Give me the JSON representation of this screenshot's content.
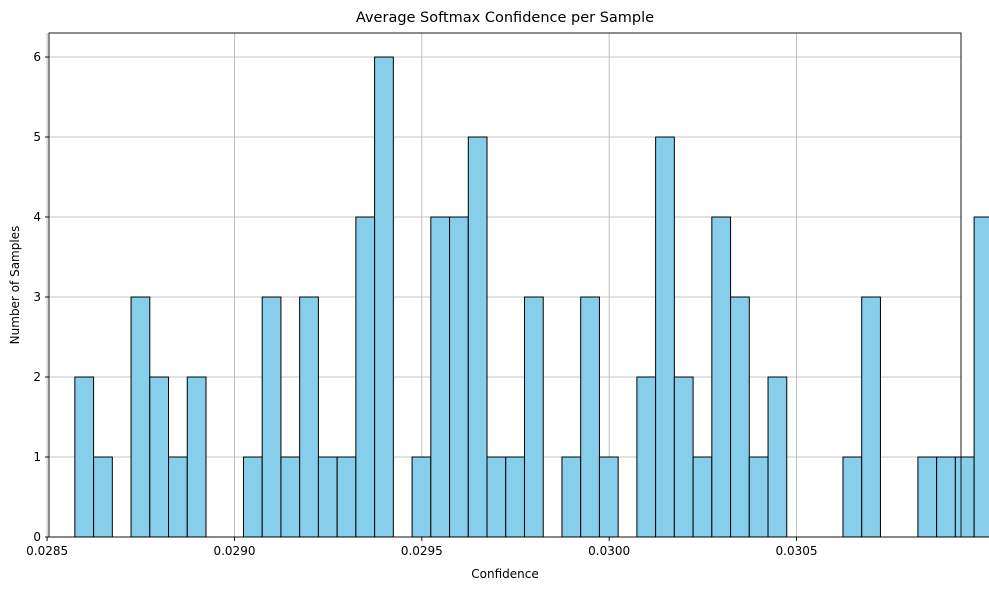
{
  "chart_data": {
    "type": "bar",
    "title": "Average Softmax Confidence per Sample",
    "xlabel": "Confidence",
    "ylabel": "Number of Samples",
    "xlim": [
      0.028505,
      0.030939
    ],
    "ylim": [
      0,
      6.3
    ],
    "xticks": [
      0.0285,
      0.029,
      0.0295,
      0.03,
      0.0305
    ],
    "xtick_labels": [
      "0.0285",
      "0.0290",
      "0.0295",
      "0.0300",
      "0.0305"
    ],
    "yticks": [
      0,
      1,
      2,
      3,
      4,
      5,
      6
    ],
    "ytick_labels": [
      "0",
      "1",
      "2",
      "3",
      "4",
      "5",
      "6"
    ],
    "grid": true,
    "bar_color": "#87CEEB",
    "edge_color": "#000000",
    "bin_start": 0.028574,
    "bin_width": 5e-05,
    "counts": [
      2,
      1,
      0,
      3,
      2,
      1,
      2,
      0,
      0,
      1,
      3,
      1,
      3,
      1,
      1,
      4,
      6,
      0,
      1,
      4,
      4,
      5,
      1,
      1,
      3,
      0,
      1,
      3,
      1,
      0,
      2,
      5,
      2,
      1,
      4,
      3,
      1,
      2,
      0,
      0,
      0,
      1,
      3,
      0,
      0,
      1,
      1,
      1,
      4
    ]
  }
}
